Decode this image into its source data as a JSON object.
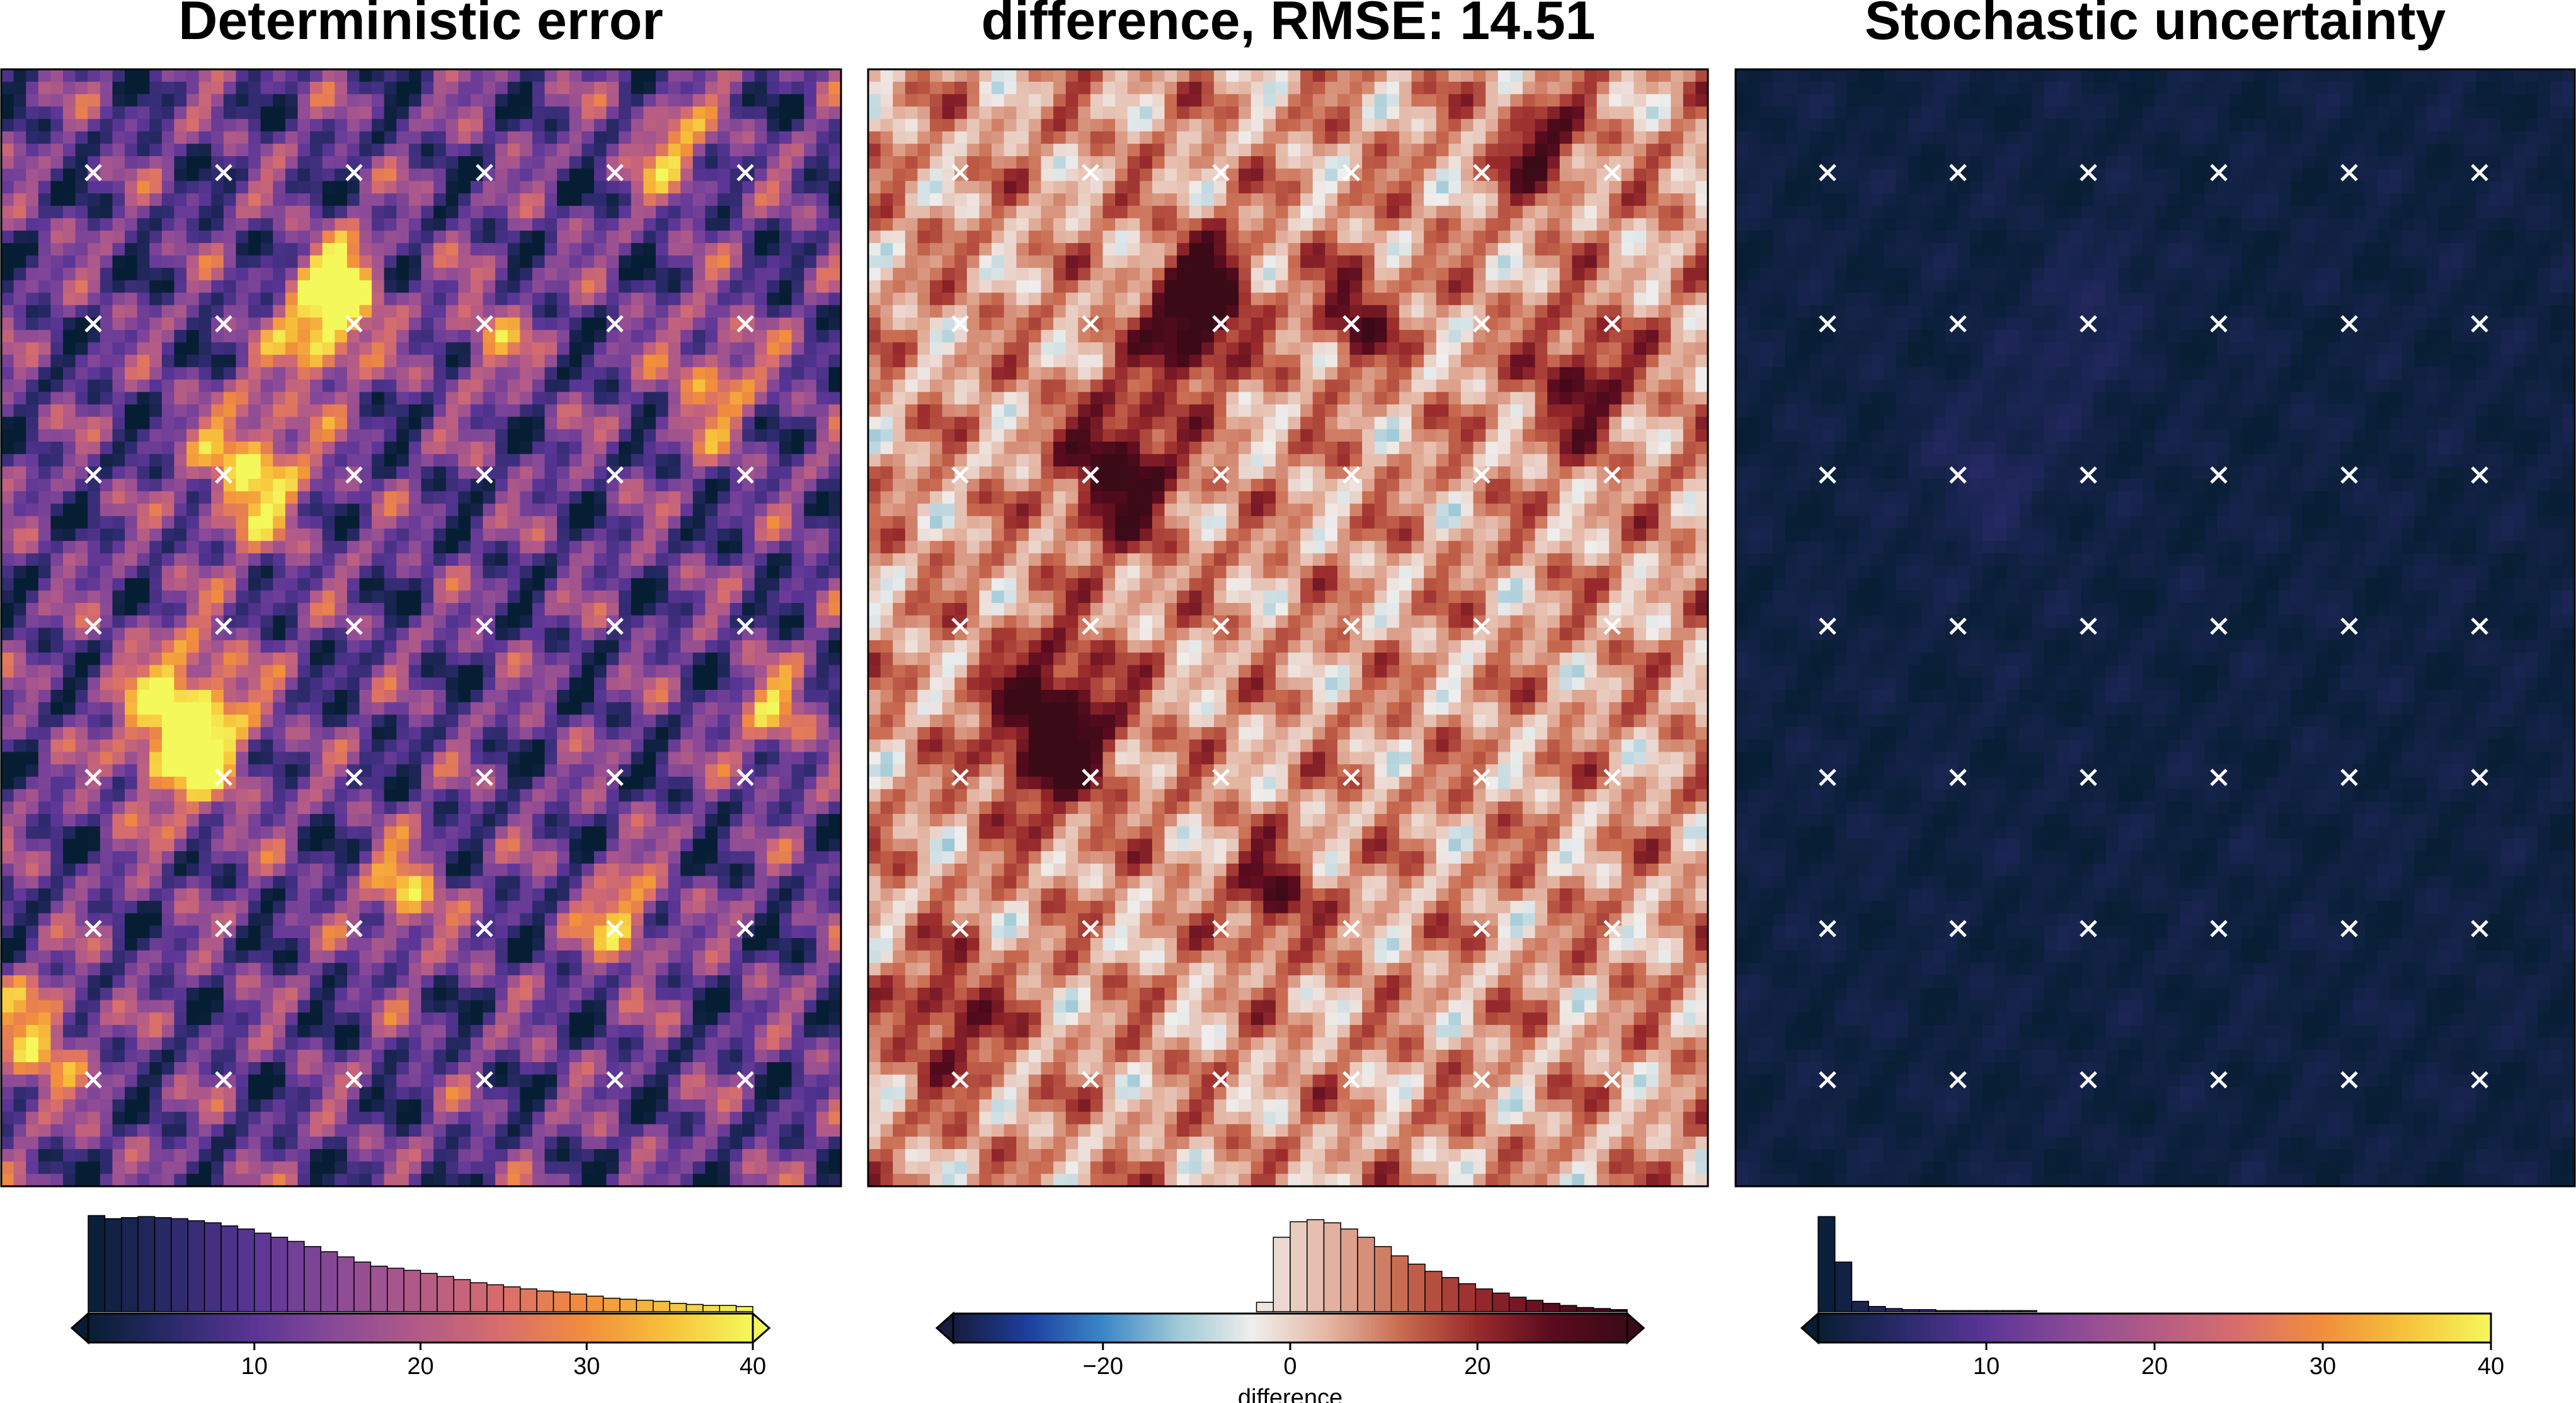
{
  "chart_data": [
    {
      "type": "heatmap",
      "title": "Deterministic error",
      "colormap": "thermal",
      "colors": [
        "#061e33",
        "#2b2a6b",
        "#5a3596",
        "#8a4a97",
        "#b35b87",
        "#d86e6c",
        "#f28e3c",
        "#f7c33b",
        "#f5f85a"
      ],
      "clim": [
        0,
        40
      ],
      "colorbar": {
        "ticks": [
          10,
          20,
          30,
          40
        ],
        "tick_labels": [
          "10",
          "20",
          "30",
          "40"
        ],
        "xlabel": "",
        "extend": "both"
      },
      "histogram": [
        0.93,
        0.9,
        0.91,
        0.92,
        0.91,
        0.9,
        0.88,
        0.86,
        0.83,
        0.8,
        0.76,
        0.72,
        0.68,
        0.63,
        0.58,
        0.53,
        0.48,
        0.44,
        0.42,
        0.4,
        0.37,
        0.34,
        0.31,
        0.28,
        0.26,
        0.24,
        0.22,
        0.2,
        0.19,
        0.17,
        0.15,
        0.13,
        0.12,
        0.11,
        0.1,
        0.08,
        0.07,
        0.06,
        0.06,
        0.05
      ],
      "field": {
        "base": 11,
        "amp": 10,
        "blobs": [
          [
            0.38,
            0.23,
            0.035,
            30
          ],
          [
            0.3,
            0.36,
            0.045,
            28
          ],
          [
            0.41,
            0.19,
            0.03,
            26
          ],
          [
            0.22,
            0.59,
            0.05,
            40
          ],
          [
            0.48,
            0.74,
            0.03,
            24
          ],
          [
            0.74,
            0.76,
            0.03,
            25
          ],
          [
            0.8,
            0.07,
            0.03,
            22
          ],
          [
            0.85,
            0.28,
            0.04,
            18
          ],
          [
            0.58,
            0.24,
            0.03,
            16
          ],
          [
            0.92,
            0.58,
            0.03,
            20
          ],
          [
            0.04,
            0.87,
            0.04,
            22
          ]
        ]
      }
    },
    {
      "type": "heatmap",
      "title": "difference, RMSE: 14.51",
      "colormap": "balance",
      "colors": [
        "#171b3d",
        "#1e3f9e",
        "#3a86c8",
        "#9ec9d6",
        "#f0eeed",
        "#e4b6a4",
        "#c86a4f",
        "#992a2c",
        "#5a0b1f",
        "#3b0a17"
      ],
      "clim": [
        -36,
        36
      ],
      "colorbar": {
        "ticks": [
          -20,
          0,
          20
        ],
        "tick_labels": [
          "−20",
          "0",
          "20"
        ],
        "xlabel": "difference",
        "extend": "both"
      },
      "histogram": [
        0,
        0,
        0,
        0,
        0,
        0,
        0,
        0,
        0,
        0,
        0,
        0,
        0,
        0,
        0,
        0,
        0,
        0,
        0.09,
        0.72,
        0.87,
        0.89,
        0.86,
        0.8,
        0.72,
        0.63,
        0.54,
        0.46,
        0.39,
        0.33,
        0.27,
        0.22,
        0.18,
        0.14,
        0.11,
        0.08,
        0.06,
        0.04,
        0.03,
        0.02
      ],
      "field": {
        "base": 7,
        "amp": 11,
        "blobs": [
          [
            0.38,
            0.23,
            0.035,
            34
          ],
          [
            0.3,
            0.36,
            0.045,
            32
          ],
          [
            0.41,
            0.19,
            0.03,
            28
          ],
          [
            0.22,
            0.59,
            0.05,
            38
          ],
          [
            0.48,
            0.74,
            0.03,
            24
          ],
          [
            0.8,
            0.07,
            0.03,
            26
          ],
          [
            0.85,
            0.28,
            0.04,
            22
          ],
          [
            0.58,
            0.22,
            0.03,
            24
          ],
          [
            0.1,
            0.85,
            0.04,
            20
          ]
        ]
      }
    },
    {
      "type": "heatmap",
      "title": "Stochastic uncertainty",
      "colormap": "thermal",
      "colors": [
        "#061e33",
        "#2b2a6b",
        "#5a3596",
        "#8a4a97",
        "#b35b87",
        "#d86e6c",
        "#f28e3c",
        "#f7c33b",
        "#f5f85a"
      ],
      "clim": [
        0,
        40
      ],
      "colorbar": {
        "ticks": [
          10,
          20,
          30,
          40
        ],
        "tick_labels": [
          "10",
          "20",
          "30",
          "40"
        ],
        "xlabel": "",
        "extend": "min"
      },
      "histogram": [
        0.92,
        0.48,
        0.1,
        0.05,
        0.03,
        0.02,
        0.02,
        0.01,
        0.01,
        0.01,
        0.01,
        0.01,
        0.01,
        0,
        0,
        0,
        0,
        0,
        0,
        0,
        0,
        0,
        0,
        0,
        0,
        0,
        0,
        0,
        0,
        0,
        0,
        0,
        0,
        0,
        0,
        0,
        0,
        0,
        0,
        0
      ],
      "field": {
        "base": 1.2,
        "amp": 0.9,
        "blobs": [
          [
            0.4,
            0.25,
            0.04,
            2.2
          ],
          [
            0.3,
            0.36,
            0.05,
            2.4
          ],
          [
            0.45,
            0.18,
            0.03,
            1.6
          ]
        ]
      }
    }
  ],
  "markers": {
    "symbol": "×",
    "columns": 6,
    "rows": 7
  }
}
